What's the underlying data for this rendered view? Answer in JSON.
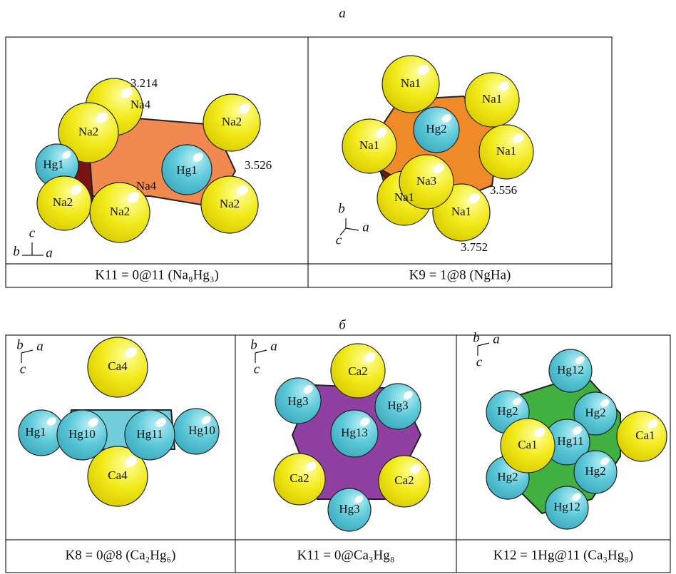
{
  "figure": {
    "part_labels": [
      "а",
      "б"
    ],
    "panels": [
      {
        "atoms": [
          "Na4",
          "Na2",
          "Na2",
          "Hg1",
          "Na4",
          "Hg1",
          "Na2",
          "Na2",
          "Na2"
        ],
        "distances": [
          3.214,
          3.526
        ],
        "axes": [
          "c",
          "b",
          "a"
        ],
        "caption": "K11 = 0@11 (Na₈Hg₃)"
      },
      {
        "atoms": [
          "Na1",
          "Na1",
          "Na1",
          "Hg2",
          "Na1",
          "Na1",
          "Na1",
          "Na3"
        ],
        "distances": [
          3.556,
          3.752
        ],
        "axes": [
          "b",
          "c",
          "a"
        ],
        "caption": "K9 = 1@8 (NgHa)"
      },
      {
        "atoms": [
          "Ca4",
          "Ca4",
          "Hg1",
          "Hg10",
          "Hg10",
          "Hg11"
        ],
        "distances": [],
        "axes": [
          "b",
          "a",
          "c"
        ],
        "caption": "K8 = 0@8 (Ca₂Hg₆)"
      },
      {
        "atoms": [
          "Ca2",
          "Hg3",
          "Hg3",
          "Hg3",
          "Ca2",
          "Ca2",
          "Hg13"
        ],
        "distances": [],
        "axes": [
          "b",
          "a",
          "c"
        ],
        "caption": "K11 = 0@Ca₃Hg₈"
      },
      {
        "atoms": [
          "Hg12",
          "Hg2",
          "Hg2",
          "Ca1",
          "Hg11",
          "Hg2",
          "Hg2",
          "Hg12",
          "Ca1"
        ],
        "distances": [],
        "axes": [
          "b",
          "a",
          "c"
        ],
        "caption": "K12 = 1Hg@11 (Ca₃Hg₈)"
      }
    ]
  }
}
